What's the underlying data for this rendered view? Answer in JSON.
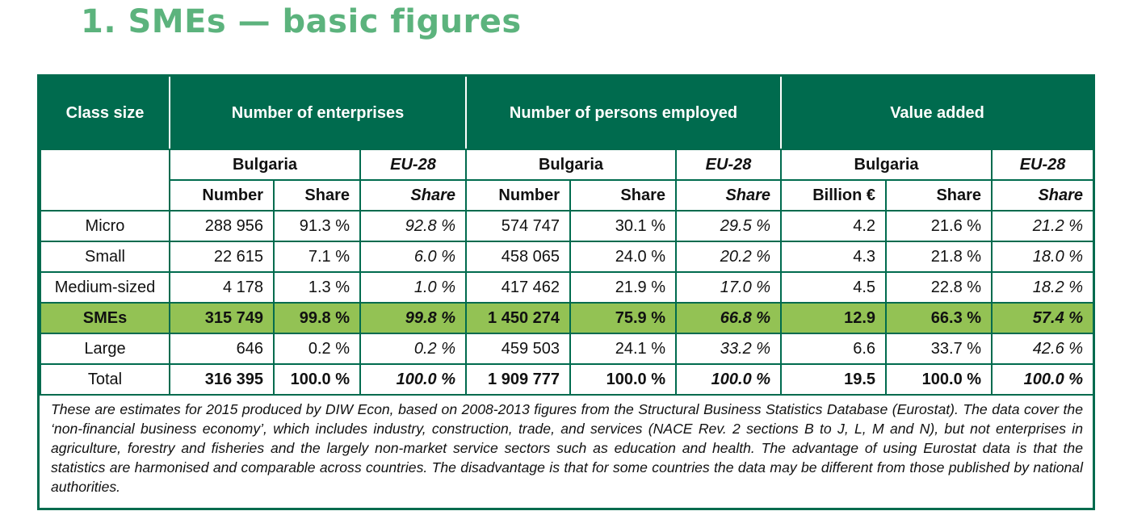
{
  "title": "1. SMEs — basic figures",
  "table": {
    "header": {
      "class_size": "Class size",
      "enterprises": "Number of enterprises",
      "persons": "Number of persons employed",
      "value_added": "Value added"
    },
    "country": "Bulgaria",
    "eu": "EU-28",
    "cols": {
      "number": "Number",
      "share": "Share",
      "billion": "Billion €"
    },
    "rows": [
      {
        "label": "Micro",
        "ent_num": "288 956",
        "ent_share": "91.3 %",
        "ent_eu": "92.8 %",
        "emp_num": "574 747",
        "emp_share": "30.1 %",
        "emp_eu": "29.5 %",
        "va_bn": "4.2",
        "va_share": "21.6 %",
        "va_eu": "21.2 %"
      },
      {
        "label": "Small",
        "ent_num": "22 615",
        "ent_share": "7.1 %",
        "ent_eu": "6.0 %",
        "emp_num": "458 065",
        "emp_share": "24.0 %",
        "emp_eu": "20.2 %",
        "va_bn": "4.3",
        "va_share": "21.8 %",
        "va_eu": "18.0 %"
      },
      {
        "label": "Medium-sized",
        "ent_num": "4 178",
        "ent_share": "1.3 %",
        "ent_eu": "1.0 %",
        "emp_num": "417 462",
        "emp_share": "21.9 %",
        "emp_eu": "17.0 %",
        "va_bn": "4.5",
        "va_share": "22.8 %",
        "va_eu": "18.2 %"
      },
      {
        "label": "SMEs",
        "ent_num": "315 749",
        "ent_share": "99.8 %",
        "ent_eu": "99.8 %",
        "emp_num": "1 450 274",
        "emp_share": "75.9 %",
        "emp_eu": "66.8 %",
        "va_bn": "12.9",
        "va_share": "66.3 %",
        "va_eu": "57.4 %"
      },
      {
        "label": "Large",
        "ent_num": "646",
        "ent_share": "0.2 %",
        "ent_eu": "0.2 %",
        "emp_num": "459 503",
        "emp_share": "24.1 %",
        "emp_eu": "33.2 %",
        "va_bn": "6.6",
        "va_share": "33.7 %",
        "va_eu": "42.6 %"
      },
      {
        "label": "Total",
        "ent_num": "316 395",
        "ent_share": "100.0 %",
        "ent_eu": "100.0 %",
        "emp_num": "1 909 777",
        "emp_share": "100.0 %",
        "emp_eu": "100.0 %",
        "va_bn": "19.5",
        "va_share": "100.0 %",
        "va_eu": "100.0 %"
      }
    ]
  },
  "note": "These are estimates for 2015 produced by DIW Econ, based on 2008-2013 figures from the Structural Business Statistics Database (Eurostat). The data cover the ‘non-financial business economy’, which includes industry, construction, trade, and services (NACE Rev. 2 sections B to J, L, M and N), but not enterprises in agriculture, forestry and fisheries and the largely non-market service sectors such as education and health. The advantage of using Eurostat data is that the statistics are harmonised and comparable across countries. The disadvantage is that for some countries the data may be different from those published by national authorities.",
  "colors": {
    "title": "#5cb37d",
    "header_bg": "#006b4e",
    "sme_row_bg": "#93c254"
  }
}
